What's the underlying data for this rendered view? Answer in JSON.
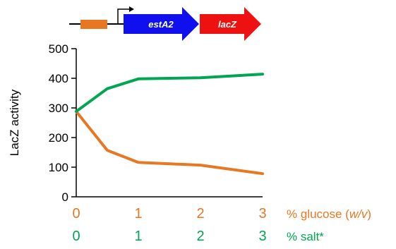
{
  "chart_data": {
    "type": "line",
    "ylabel": "LacZ activity",
    "ylim": [
      0,
      500
    ],
    "yticks": [
      0,
      100,
      200,
      300,
      400,
      500
    ],
    "x_axes": [
      {
        "id": "glucose",
        "label_prefix": "% glucose (",
        "label_italic": "w/v",
        "label_suffix": ")",
        "ticks": [
          "0",
          "1",
          "2",
          "3"
        ],
        "color": "#E87722"
      },
      {
        "id": "salt",
        "label": "% salt*",
        "ticks": [
          "0",
          "1",
          "2",
          "3"
        ],
        "color": "#00A651"
      }
    ],
    "series": [
      {
        "id": "glucose",
        "color": "#E87722",
        "x": [
          0,
          0.5,
          1,
          2,
          3
        ],
        "y": [
          288,
          157,
          116,
          107,
          78
        ]
      },
      {
        "id": "salt",
        "color": "#00A651",
        "x": [
          0,
          0.5,
          1,
          2,
          3
        ],
        "y": [
          288,
          365,
          398,
          402,
          414
        ]
      }
    ],
    "xlim": [
      0,
      3
    ]
  },
  "construct": {
    "promoter_box_color": "#E87722",
    "genes": [
      {
        "label": "estA2",
        "color": "#1010EE"
      },
      {
        "label": "lacZ",
        "color": "#EE1111"
      }
    ]
  }
}
